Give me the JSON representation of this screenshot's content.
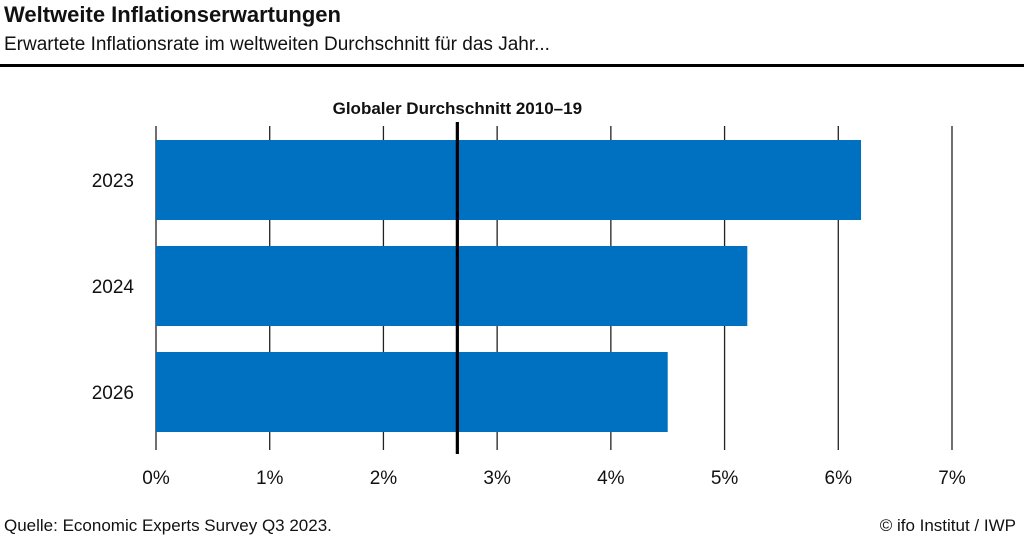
{
  "header": {
    "title": "Weltweite Inflationserwartungen",
    "subtitle": "Erwartete Inflationsrate im weltweiten Durchschnitt für das Jahr..."
  },
  "footer": {
    "source": "Quelle: Economic Experts Survey Q3 2023.",
    "credit": "© ifo Institut / IWP"
  },
  "chart_data": {
    "type": "bar",
    "orientation": "horizontal",
    "categories": [
      "2023",
      "2024",
      "2026"
    ],
    "values": [
      6.2,
      5.2,
      4.5
    ],
    "bar_color": "#0070c0",
    "xlim": [
      0,
      7
    ],
    "xticks": [
      0,
      1,
      2,
      3,
      4,
      5,
      6,
      7
    ],
    "xtick_labels": [
      "0%",
      "1%",
      "2%",
      "3%",
      "4%",
      "5%",
      "6%",
      "7%"
    ],
    "grid": "vertical",
    "reference_line": {
      "value": 2.65,
      "label": "Globaler Durchschnitt 2010–19"
    }
  }
}
